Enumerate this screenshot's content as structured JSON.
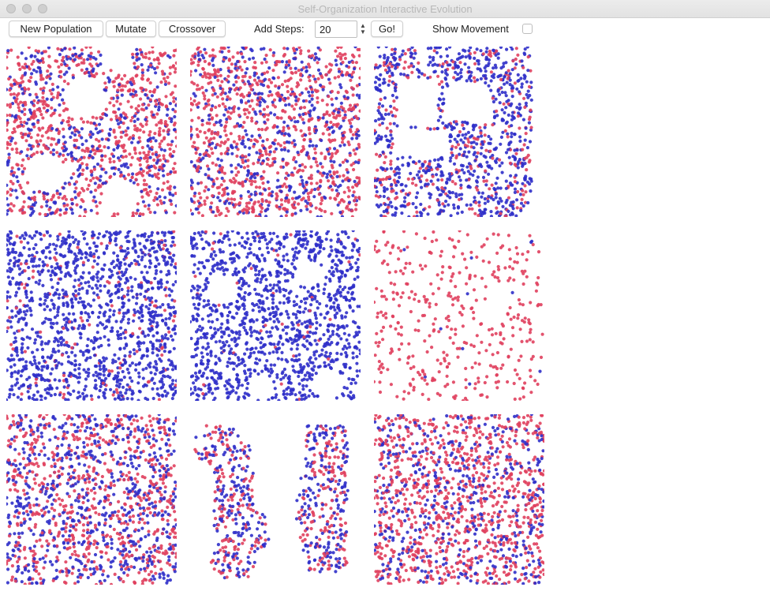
{
  "window": {
    "title": "Self-Organization Interactive Evolution"
  },
  "toolbar": {
    "new_population_label": "New Population",
    "mutate_label": "Mutate",
    "crossover_label": "Crossover",
    "add_steps_label": "Add Steps:",
    "steps_value": "20",
    "go_label": "Go!",
    "show_movement_label": "Show Movement"
  },
  "colors": {
    "red_particle": "#e0405e",
    "blue_particle": "#2f2fc9"
  },
  "populations": [
    {
      "pattern": "red-ring-clusters",
      "blue_share": 0.35
    },
    {
      "pattern": "uniform-mixed",
      "blue_share": 0.35
    },
    {
      "pattern": "blue-dense-band",
      "blue_share": 0.75
    },
    {
      "pattern": "uniform-blue",
      "blue_share": 0.9
    },
    {
      "pattern": "blue-with-holes",
      "blue_share": 0.97
    },
    {
      "pattern": "sparse-red",
      "blue_share": 0.05
    },
    {
      "pattern": "uniform-mixed",
      "blue_share": 0.5
    },
    {
      "pattern": "two-blobs",
      "blue_share": 0.55
    },
    {
      "pattern": "uniform-mixed",
      "blue_share": 0.35
    }
  ]
}
